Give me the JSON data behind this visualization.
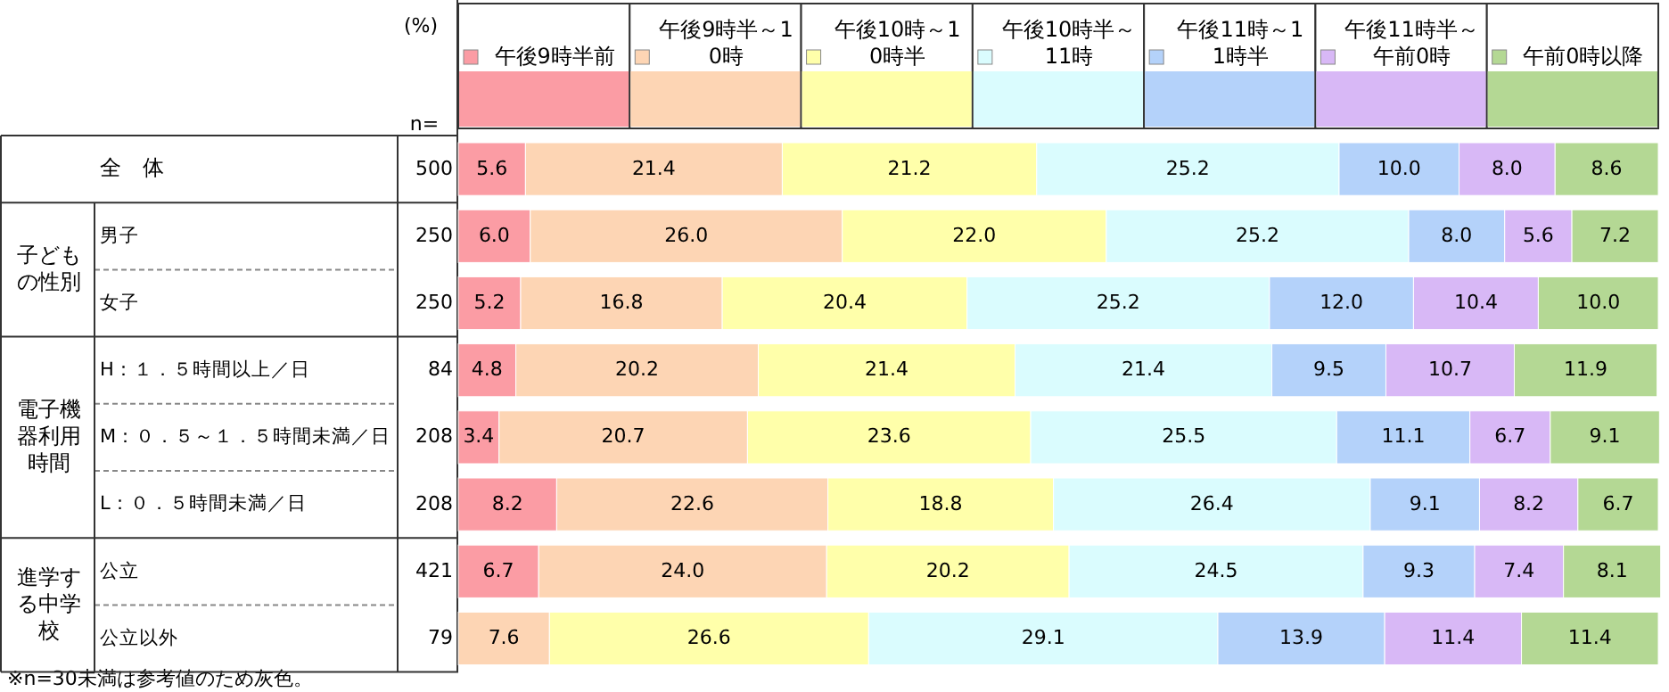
{
  "chart_data": {
    "type": "bar",
    "orientation": "horizontal",
    "stacked": true,
    "legend": "top",
    "xlim": [
      0,
      100
    ],
    "categories": [
      "全　体",
      "男子",
      "女子",
      "H：１．５時間以上／日",
      "M：０．５～１．５時間未満／日",
      "L：０．５時間未満／日",
      "公立",
      "公立以外"
    ],
    "y2_categories": [
      "500",
      "250",
      "250",
      "84",
      "208",
      "208",
      "421",
      "79"
    ],
    "annotations": [
      "(%)",
      "n=",
      "子どもの性別",
      "電子機器利用時間",
      "進学する中学校",
      "※n=30未満は参考値のため灰色。"
    ],
    "series": [
      {
        "name": "午後9時半前",
        "color": "#fb9ca4",
        "values": [
          5.6,
          6.0,
          5.2,
          4.8,
          3.4,
          8.2,
          6.7,
          0
        ],
        "value_labels": [
          "5.6",
          "6.0",
          "5.2",
          "4.8",
          "3.4",
          "8.2",
          "6.7",
          null
        ]
      },
      {
        "name": "午後9時半～10時",
        "color": "#fdd5b4",
        "values": [
          21.4,
          26.0,
          16.8,
          20.2,
          20.7,
          22.6,
          24.0,
          7.6
        ],
        "value_labels": [
          "21.4",
          "26.0",
          "16.8",
          "20.2",
          "20.7",
          "22.6",
          "24.0",
          "7.6"
        ]
      },
      {
        "name": "午後10時～10時半",
        "color": "#ffffaa",
        "values": [
          21.2,
          22.0,
          20.4,
          21.4,
          23.6,
          18.8,
          20.2,
          26.6
        ],
        "value_labels": [
          "21.2",
          "22.0",
          "20.4",
          "21.4",
          "23.6",
          "18.8",
          "20.2",
          "26.6"
        ]
      },
      {
        "name": "午後10時半～11時",
        "color": "#dafcfe",
        "values": [
          25.2,
          25.2,
          25.2,
          21.4,
          25.5,
          26.4,
          24.5,
          29.1
        ],
        "value_labels": [
          "25.2",
          "25.2",
          "25.2",
          "21.4",
          "25.5",
          "26.4",
          "24.5",
          "29.1"
        ]
      },
      {
        "name": "午後11時～11時半",
        "color": "#b4d2fa",
        "values": [
          10.0,
          8.0,
          12.0,
          9.5,
          11.1,
          9.1,
          9.3,
          13.9
        ],
        "value_labels": [
          "10.0",
          "8.0",
          "12.0",
          "9.5",
          "11.1",
          "9.1",
          "9.3",
          "13.9"
        ]
      },
      {
        "name": "午後11時半～午前0時",
        "color": "#d8b8f6",
        "values": [
          8.0,
          5.6,
          10.4,
          10.7,
          6.7,
          8.2,
          7.4,
          11.4
        ],
        "value_labels": [
          "8.0",
          "5.6",
          "10.4",
          "10.7",
          "6.7",
          "8.2",
          "7.4",
          "11.4"
        ]
      },
      {
        "name": "午前0時以降",
        "color": "#b4d894",
        "values": [
          8.6,
          7.2,
          10.0,
          11.9,
          9.1,
          6.7,
          8.1,
          11.4
        ],
        "value_labels": [
          "8.6",
          "7.2",
          "10.0",
          "11.9",
          "9.1",
          "6.7",
          "8.1",
          "11.4"
        ]
      }
    ]
  }
}
